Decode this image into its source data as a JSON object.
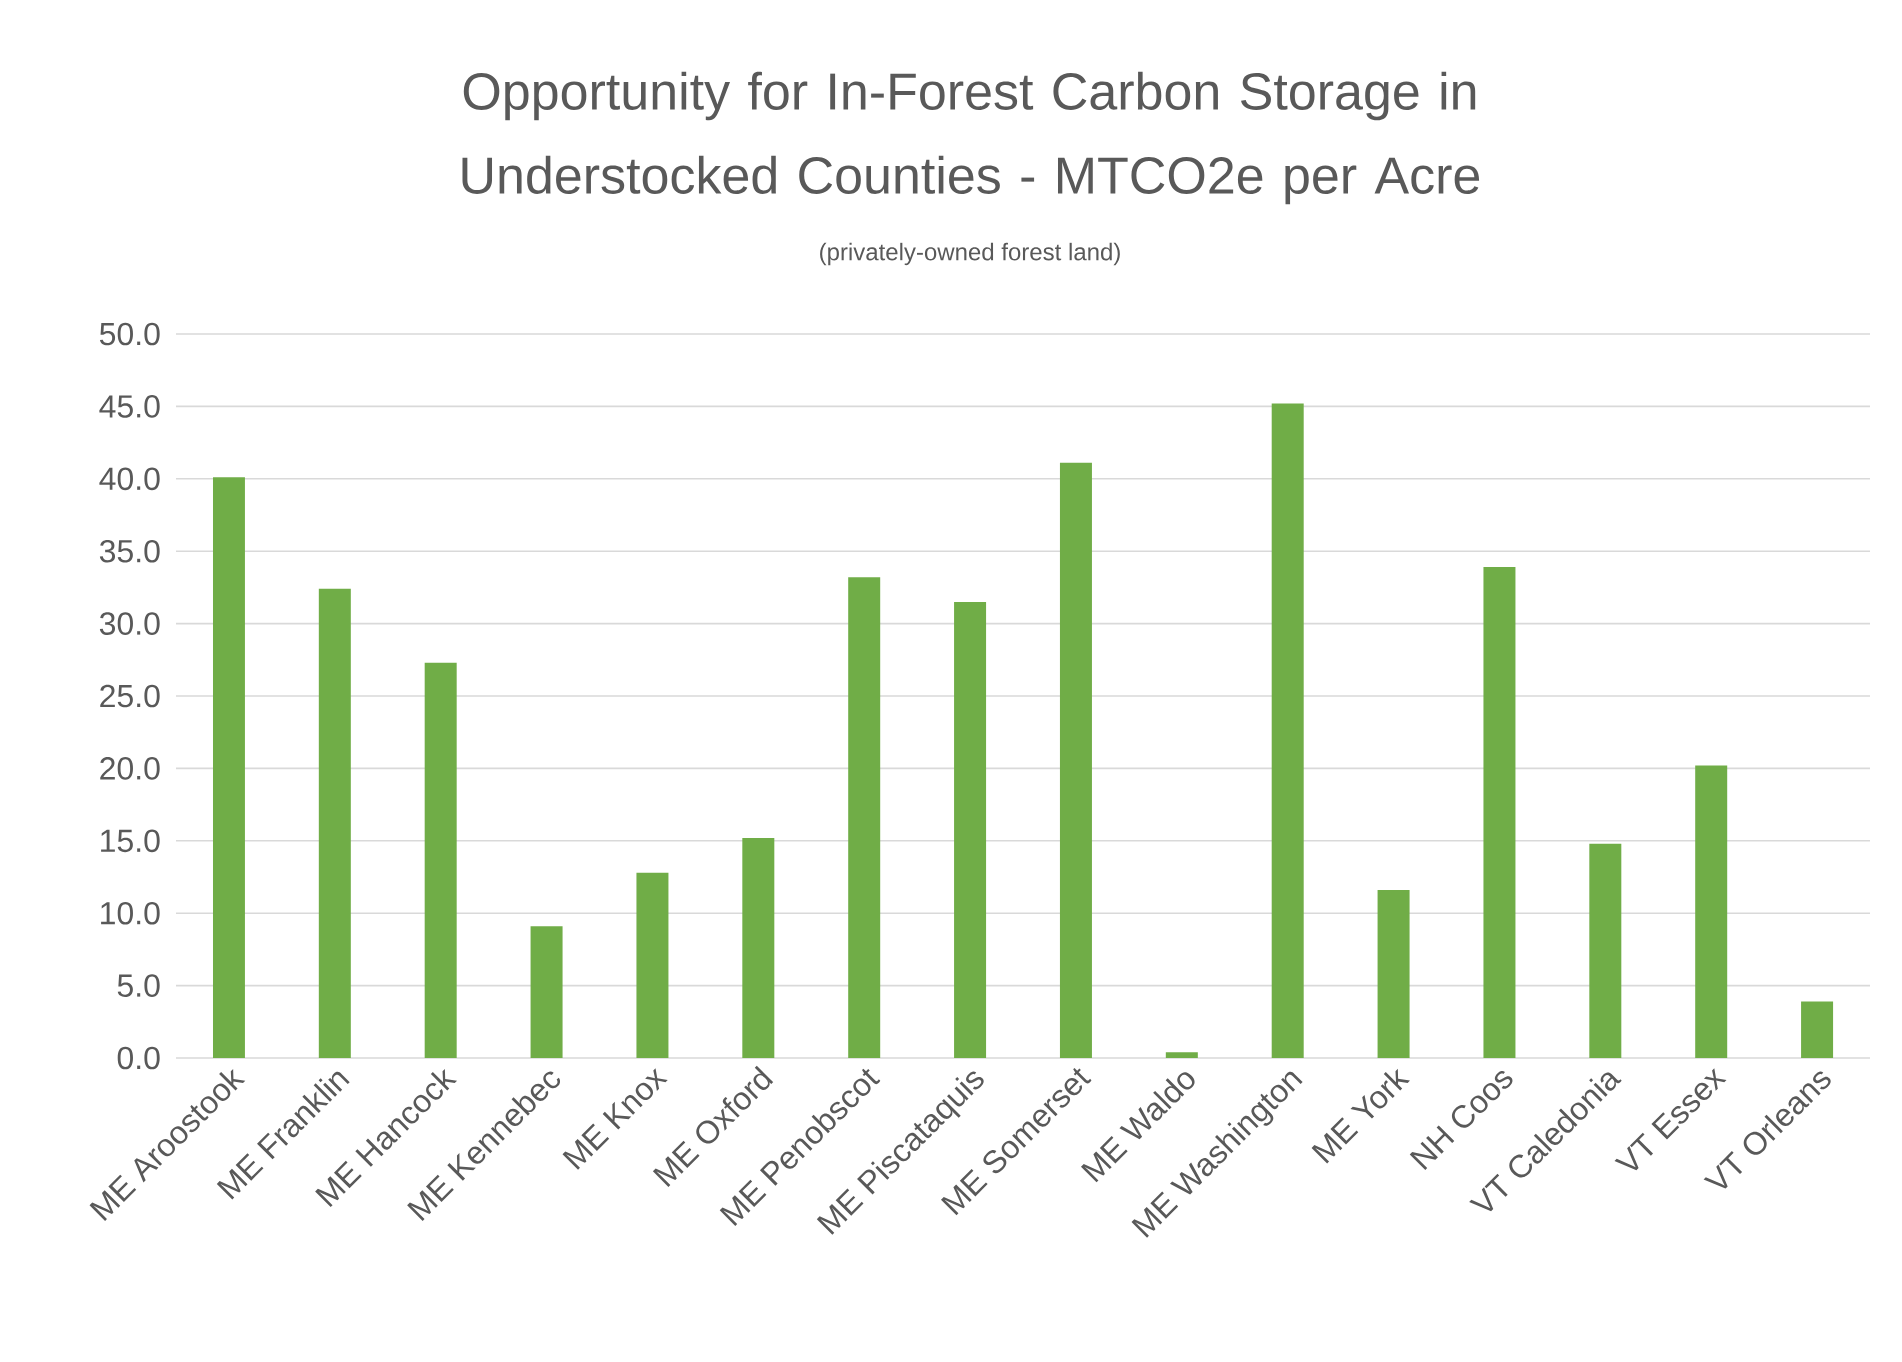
{
  "chart_data": {
    "type": "bar",
    "title": "Opportunity for In-Forest Carbon Storage in Understocked Counties - MTCO2e per Acre",
    "subtitle": "(privately-owned forest land)",
    "categories": [
      "ME Aroostook",
      "ME Franklin",
      "ME Hancock",
      "ME Kennebec",
      "ME Knox",
      "ME Oxford",
      "ME Penobscot",
      "ME Piscataquis",
      "ME Somerset",
      "ME Waldo",
      "ME Washington",
      "ME York",
      "NH Coos",
      "VT Caledonia",
      "VT Essex",
      "VT Orleans"
    ],
    "values": [
      40.1,
      32.4,
      27.3,
      9.1,
      12.8,
      15.2,
      33.2,
      31.5,
      41.1,
      0.4,
      45.2,
      11.6,
      33.9,
      14.8,
      20.2,
      3.9
    ],
    "color": "#70ad47",
    "ylim": [
      0,
      50
    ],
    "yticks": [
      {
        "value": 0,
        "label": "0.0"
      },
      {
        "value": 5,
        "label": "5.0"
      },
      {
        "value": 10,
        "label": "10.0"
      },
      {
        "value": 15,
        "label": "15.0"
      },
      {
        "value": 20,
        "label": "20.0"
      },
      {
        "value": 25,
        "label": "25.0"
      },
      {
        "value": 30,
        "label": "30.0"
      },
      {
        "value": 35,
        "label": "35.0"
      },
      {
        "value": 40,
        "label": "40.0"
      },
      {
        "value": 45,
        "label": "45.0"
      },
      {
        "value": 50,
        "label": "50.0"
      }
    ],
    "grid": "y"
  }
}
